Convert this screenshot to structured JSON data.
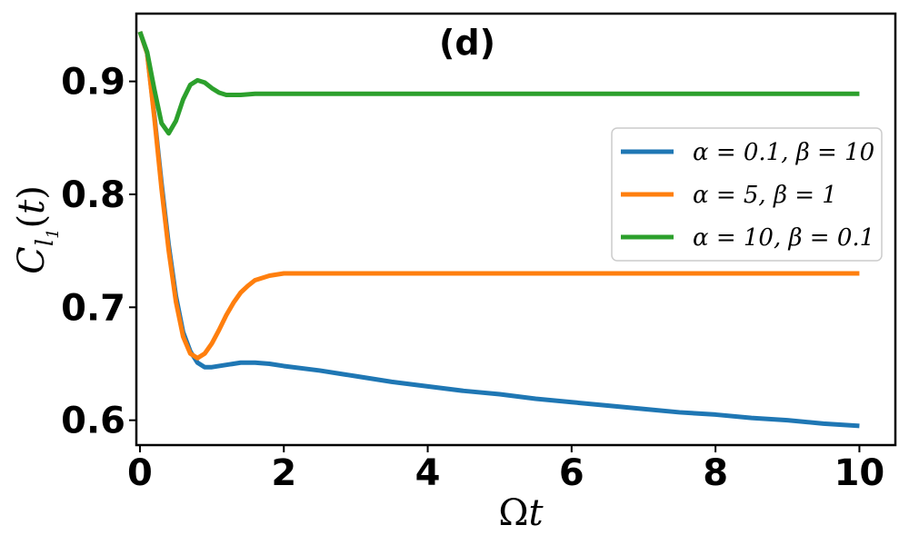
{
  "chart_data": {
    "type": "line",
    "panel_label": "(d)",
    "xlabel": "Ωt",
    "ylabel": "C_{l_1}(t)",
    "xlim": [
      -0.05,
      10.5
    ],
    "ylim": [
      0.578,
      0.96
    ],
    "xticks": [
      0,
      2,
      4,
      6,
      8,
      10
    ],
    "yticks": [
      0.6,
      0.7,
      0.8,
      0.9
    ],
    "xtick_labels": [
      "0",
      "2",
      "4",
      "6",
      "8",
      "10"
    ],
    "ytick_labels": [
      "0.6",
      "0.7",
      "0.8",
      "0.9"
    ],
    "grid": false,
    "legend_position": "center-right",
    "series": [
      {
        "name": "α = 0.1, β = 10",
        "color": "#1f77b4",
        "points": [
          [
            0,
            0.944
          ],
          [
            0.1,
            0.925
          ],
          [
            0.2,
            0.87
          ],
          [
            0.3,
            0.81
          ],
          [
            0.4,
            0.755
          ],
          [
            0.5,
            0.71
          ],
          [
            0.6,
            0.678
          ],
          [
            0.7,
            0.661
          ],
          [
            0.8,
            0.651
          ],
          [
            0.9,
            0.647
          ],
          [
            1.0,
            0.647
          ],
          [
            1.2,
            0.649
          ],
          [
            1.4,
            0.651
          ],
          [
            1.6,
            0.651
          ],
          [
            1.8,
            0.65
          ],
          [
            2.0,
            0.648
          ],
          [
            2.5,
            0.644
          ],
          [
            3.0,
            0.639
          ],
          [
            3.5,
            0.634
          ],
          [
            4.0,
            0.63
          ],
          [
            4.5,
            0.626
          ],
          [
            5.0,
            0.623
          ],
          [
            5.5,
            0.619
          ],
          [
            6.0,
            0.616
          ],
          [
            6.5,
            0.613
          ],
          [
            7.0,
            0.61
          ],
          [
            7.5,
            0.607
          ],
          [
            8.0,
            0.605
          ],
          [
            8.5,
            0.602
          ],
          [
            9.0,
            0.6
          ],
          [
            9.5,
            0.597
          ],
          [
            10.0,
            0.595
          ]
        ]
      },
      {
        "name": "α = 5, β = 1",
        "color": "#ff7f0e",
        "points": [
          [
            0,
            0.944
          ],
          [
            0.1,
            0.925
          ],
          [
            0.2,
            0.868
          ],
          [
            0.3,
            0.805
          ],
          [
            0.4,
            0.75
          ],
          [
            0.5,
            0.705
          ],
          [
            0.6,
            0.674
          ],
          [
            0.7,
            0.659
          ],
          [
            0.8,
            0.655
          ],
          [
            0.9,
            0.659
          ],
          [
            1.0,
            0.668
          ],
          [
            1.1,
            0.68
          ],
          [
            1.2,
            0.693
          ],
          [
            1.3,
            0.704
          ],
          [
            1.4,
            0.713
          ],
          [
            1.5,
            0.719
          ],
          [
            1.6,
            0.724
          ],
          [
            1.8,
            0.728
          ],
          [
            2.0,
            0.73
          ],
          [
            2.5,
            0.73
          ],
          [
            3.0,
            0.73
          ],
          [
            4.0,
            0.73
          ],
          [
            5.0,
            0.73
          ],
          [
            6.0,
            0.73
          ],
          [
            7.0,
            0.73
          ],
          [
            8.0,
            0.73
          ],
          [
            9.0,
            0.73
          ],
          [
            10.0,
            0.73
          ]
        ]
      },
      {
        "name": "α = 10, β = 0.1",
        "color": "#2ca02c",
        "points": [
          [
            0,
            0.944
          ],
          [
            0.1,
            0.926
          ],
          [
            0.2,
            0.893
          ],
          [
            0.3,
            0.863
          ],
          [
            0.4,
            0.854
          ],
          [
            0.5,
            0.865
          ],
          [
            0.6,
            0.884
          ],
          [
            0.7,
            0.897
          ],
          [
            0.8,
            0.901
          ],
          [
            0.9,
            0.899
          ],
          [
            1.0,
            0.894
          ],
          [
            1.1,
            0.89
          ],
          [
            1.2,
            0.888
          ],
          [
            1.4,
            0.888
          ],
          [
            1.6,
            0.889
          ],
          [
            2.0,
            0.889
          ],
          [
            3.0,
            0.889
          ],
          [
            4.0,
            0.889
          ],
          [
            5.0,
            0.889
          ],
          [
            6.0,
            0.889
          ],
          [
            7.0,
            0.889
          ],
          [
            8.0,
            0.889
          ],
          [
            9.0,
            0.889
          ],
          [
            10.0,
            0.889
          ]
        ]
      }
    ]
  }
}
